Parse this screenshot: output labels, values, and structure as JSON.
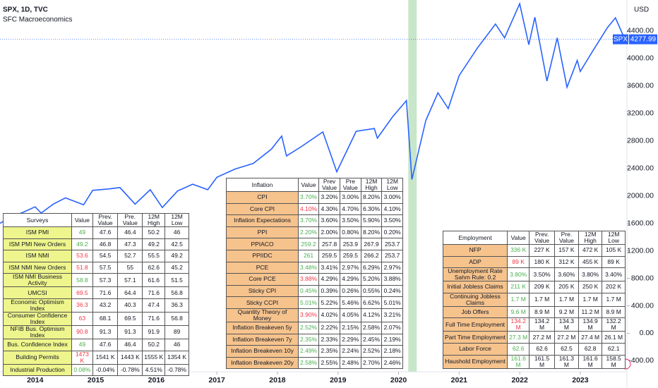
{
  "chart_data": {
    "type": "line",
    "title": "SPX, 1D, TVC",
    "subtitle": "SFC Macroeconomics",
    "y_label": "USD",
    "x": [
      2013.42,
      2013.6,
      2013.8,
      2014.0,
      2014.1,
      2014.3,
      2014.5,
      2014.8,
      2014.95,
      2015.2,
      2015.4,
      2015.65,
      2015.9,
      2016.1,
      2016.35,
      2016.6,
      2016.85,
      2017.0,
      2017.3,
      2017.6,
      2017.9,
      2018.07,
      2018.15,
      2018.4,
      2018.75,
      2018.98,
      2019.3,
      2019.6,
      2019.65,
      2019.9,
      2020.13,
      2020.22,
      2020.45,
      2020.65,
      2020.82,
      2021.0,
      2021.3,
      2021.6,
      2021.75,
      2022.0,
      2022.15,
      2022.25,
      2022.45,
      2022.62,
      2022.78,
      2022.95,
      2023.0,
      2023.2,
      2023.45,
      2023.58,
      2023.7,
      2023.77
    ],
    "series": [
      {
        "name": "SPX",
        "color": "#2962ff",
        "values": [
          1600,
          1690,
          1760,
          1840,
          1750,
          1880,
          1970,
          1870,
          2080,
          2100,
          2120,
          1880,
          2090,
          1830,
          2070,
          2170,
          2090,
          2270,
          2390,
          2470,
          2680,
          2870,
          2580,
          2720,
          2930,
          2350,
          2940,
          2980,
          2840,
          3150,
          3386,
          2237,
          3100,
          3500,
          3270,
          3750,
          4150,
          4500,
          4300,
          4796,
          4200,
          4600,
          3670,
          4300,
          3580,
          3970,
          3810,
          4100,
          4450,
          4590,
          4350,
          4277.99
        ]
      }
    ],
    "last_price": 4277.99,
    "highlight_x": [
      2020.16,
      2020.3
    ],
    "highlight_color": "#c8e6c9",
    "xlim": [
      2013.42,
      2023.77
    ],
    "xticks": [
      2014,
      2015,
      2016,
      2017,
      2018,
      2019,
      2020,
      2021,
      2022,
      2023
    ],
    "ylim": [
      -560,
      4850
    ],
    "yticks": [
      {
        "value": 4400,
        "label": "4400.00"
      },
      {
        "value": 4000,
        "label": "4000.00"
      },
      {
        "value": 3600,
        "label": "3600.00"
      },
      {
        "value": 3200,
        "label": "3200.00"
      },
      {
        "value": 2800,
        "label": "2800.00"
      },
      {
        "value": 2400,
        "label": "2400.00"
      },
      {
        "value": 2000,
        "label": "2000.00"
      },
      {
        "value": 1600,
        "label": "1600.00"
      },
      {
        "value": 1200,
        "label": "1200.00"
      },
      {
        "value": 800,
        "label": "800.00"
      },
      {
        "value": 400,
        "label": "400.00"
      },
      {
        "value": 0,
        "label": "0.00"
      },
      {
        "value": -400,
        "label": "-400.00"
      }
    ]
  },
  "tables": {
    "surveys": {
      "label_color": "#eef58c",
      "up_color": "#4caf50",
      "down_color": "#f23645",
      "header": [
        "Surveys",
        "Value",
        "Prev. Value",
        "Pre. Value",
        "12M High",
        "12M Low"
      ],
      "rows": [
        [
          "ISM PMI",
          "49",
          "47.6",
          "46.4",
          "50.2",
          "46"
        ],
        [
          "ISM PMI New Orders",
          "49.2",
          "46.8",
          "47.3",
          "49.2",
          "42.5"
        ],
        [
          "ISM NMI",
          "53.6",
          "54.5",
          "52.7",
          "55.5",
          "49.2"
        ],
        [
          "ISM NMI New Orders",
          "51.8",
          "57.5",
          "55",
          "62.6",
          "45.2"
        ],
        [
          "ISM NMI Business Activity",
          "58.8",
          "57.3",
          "57.1",
          "61.6",
          "51.5"
        ],
        [
          "UMCSI",
          "69.5",
          "71.6",
          "64.4",
          "71.6",
          "56.8"
        ],
        [
          "Economic Optimism Index",
          "36.3",
          "43.2",
          "40.3",
          "47.4",
          "36.3"
        ],
        [
          "Consumer Confidence Index",
          "63",
          "68.1",
          "69.5",
          "71.6",
          "56.8"
        ],
        [
          "NFIB Bus. Optimism Index",
          "90.8",
          "91.3",
          "91.3",
          "91.9",
          "89"
        ],
        [
          "Bus. Confidence Index",
          "49",
          "47.6",
          "46.4",
          "50.2",
          "46"
        ],
        [
          "Building Permits",
          "1473 K",
          "1541 K",
          "1443 K",
          "1555 K",
          "1354 K"
        ],
        [
          "Industrial Production",
          "0.08%",
          "-0.04%",
          "-0.78%",
          "4.51%",
          "-0.78%"
        ]
      ],
      "trend": [
        "up",
        "up",
        "down",
        "down",
        "up",
        "down",
        "down",
        "down",
        "down",
        "up",
        "down",
        "up"
      ]
    },
    "inflation": {
      "label_color": "#f6c38d",
      "up_color": "#4caf50",
      "down_color": "#f23645",
      "header": [
        "Inflation",
        "Value",
        "Prev Value",
        "Pre Value",
        "12M High",
        "12M Low"
      ],
      "rows": [
        [
          "CPI",
          "3.70%",
          "3.20%",
          "3.00%",
          "8.20%",
          "3.00%"
        ],
        [
          "Core CPI",
          "4.10%",
          "4.30%",
          "4.70%",
          "6.30%",
          "4.10%"
        ],
        [
          "Inflation Expectations",
          "3.70%",
          "3.60%",
          "3.50%",
          "5.90%",
          "3.50%"
        ],
        [
          "PPI",
          "2.20%",
          "2.00%",
          "0.80%",
          "8.20%",
          "0.20%"
        ],
        [
          "PPIACO",
          "259.2",
          "257.8",
          "253.9",
          "267.9",
          "253.7"
        ],
        [
          "PPIIDC",
          "261",
          "259.5",
          "259.5",
          "266.2",
          "253.7"
        ],
        [
          "PCE",
          "3.48%",
          "3.41%",
          "2.97%",
          "6.29%",
          "2.97%"
        ],
        [
          "Core PCE",
          "3.88%",
          "4.29%",
          "4.29%",
          "5.20%",
          "3.88%"
        ],
        [
          "Sticky CPI",
          "0.45%",
          "0.39%",
          "0.26%",
          "0.55%",
          "0.24%"
        ],
        [
          "Sticky CCPI",
          "5.01%",
          "5.22%",
          "5.46%",
          "6.62%",
          "5.01%"
        ],
        [
          "Quantity Theory of Money",
          "3.90%",
          "4.02%",
          "4.05%",
          "4.12%",
          "3.21%"
        ],
        [
          "Inflation Breakeven 5y",
          "2.52%",
          "2.22%",
          "2.15%",
          "2.58%",
          "2.07%"
        ],
        [
          "Inflation Breakeven 7y",
          "2.35%",
          "2.33%",
          "2.29%",
          "2.45%",
          "2.19%"
        ],
        [
          "Inflation Breakeven 10y",
          "2.49%",
          "2.35%",
          "2.24%",
          "2.52%",
          "2.18%"
        ],
        [
          "Inflation Breakeven 20y",
          "2.58%",
          "2.55%",
          "2.48%",
          "2.70%",
          "2.46%"
        ]
      ],
      "trend": [
        "up",
        "down",
        "up",
        "up",
        "up",
        "up",
        "up",
        "down",
        "up",
        "up",
        "down",
        "up",
        "up",
        "up",
        "up"
      ]
    },
    "employment": {
      "label_color": "#f6c38d",
      "up_color": "#4caf50",
      "down_color": "#f23645",
      "header": [
        "Employment",
        "Value",
        "Prev. Value",
        "Pre. Value",
        "12M High",
        "12M Low"
      ],
      "rows": [
        [
          "NFP",
          "336 K",
          "227 K",
          "157 K",
          "472 K",
          "105 K"
        ],
        [
          "ADP",
          "89 K",
          "180 K",
          "312 K",
          "455 K",
          "89 K"
        ],
        [
          "Unemployment Rate\nSahm Rule: 0.2",
          "3.80%",
          "3.50%",
          "3.60%",
          "3.80%",
          "3.40%"
        ],
        [
          "Initial Jobless Claims",
          "211 K",
          "209 K",
          "205 K",
          "250 K",
          "202 K"
        ],
        [
          "Continuing Jobless Claims",
          "1.7 M",
          "1.7 M",
          "1.7 M",
          "1.7 M",
          "1.7 M"
        ],
        [
          "Job Offers",
          "9.6 M",
          "8.9 M",
          "9.2 M",
          "11.2 M",
          "8.9 M"
        ],
        [
          "Full Time Employment",
          "134.2 M",
          "134.2 M",
          "134.3 M",
          "134.9 M",
          "132.2 M"
        ],
        [
          "Part Time Employment",
          "27.3 M",
          "27.2 M",
          "27.2 M",
          "27.4 M",
          "26.1 M"
        ],
        [
          "Labor Force",
          "62.6",
          "62.6",
          "62.5",
          "62.8",
          "62.1"
        ],
        [
          "Haushold Employment",
          "161.6 M",
          "161.5 M",
          "161.3 M",
          "161.6 M",
          "158.5 M"
        ]
      ],
      "trend": [
        "up",
        "down",
        "up",
        "up",
        "up",
        "up",
        "down",
        "up",
        "up",
        "up"
      ]
    }
  }
}
